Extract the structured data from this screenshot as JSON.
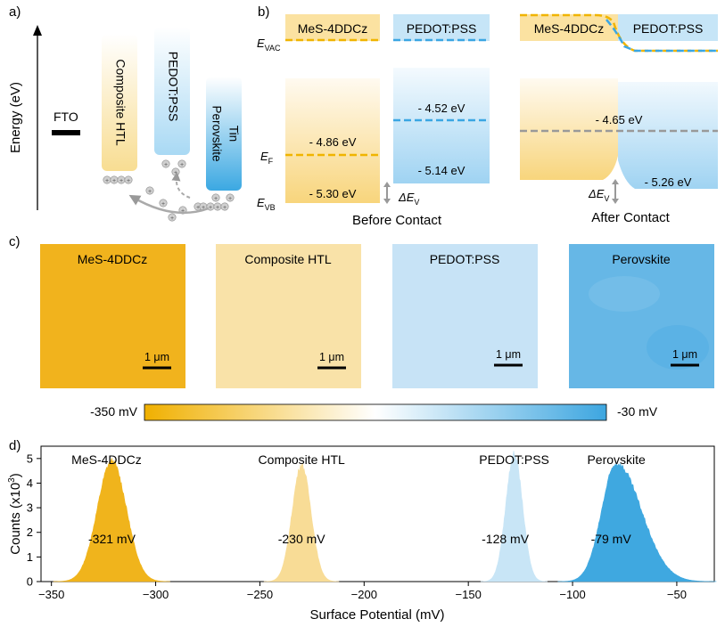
{
  "panels": {
    "a": {
      "label": "a)",
      "y_axis": "Energy (eV)",
      "fto": "FTO",
      "bars": [
        "Composite HTL",
        "PEDOT:PSS",
        "Tin",
        "Perovskite"
      ]
    },
    "b": {
      "label": "b)",
      "left_box": "MeS-4DDCz",
      "right_box": "PEDOT:PSS",
      "evac_main": "E",
      "evac_sub": "VAC",
      "ef_main": "E",
      "ef_sub": "F",
      "evb_main": "E",
      "evb_sub": "VB",
      "before": {
        "v1": "- 4.86 eV",
        "v2": "- 5.30 eV",
        "v3": "- 4.52 eV",
        "v4": "- 5.14 eV",
        "caption": "Before Contact"
      },
      "after": {
        "left_box": "MeS-4DDCz",
        "right_box": "PEDOT:PSS",
        "v1": "- 4.65 eV",
        "v2": "- 5.26 eV",
        "caption": "After Contact"
      },
      "delta_main": "ΔE",
      "delta_sub": "V"
    },
    "c": {
      "label": "c)",
      "maps": [
        {
          "title": "MeS-4DDCz",
          "scale": "1 μm",
          "color": "#f2b31f"
        },
        {
          "title": "Composite HTL",
          "scale": "1 μm",
          "color": "#f9e2a9"
        },
        {
          "title": "PEDOT:PSS",
          "scale": "1 μm",
          "color": "#c5e2f5"
        },
        {
          "title": "Perovskite",
          "scale": "1 μm",
          "color": "#62b6e6"
        }
      ],
      "colorbar_min": "-350 mV",
      "colorbar_max": "-30 mV"
    }
  },
  "chart_data": {
    "type": "area",
    "panel_label": "d)",
    "title": "",
    "xlabel": "Surface Potential (mV)",
    "ylabel": "Counts (x10",
    "ylabel_sup": "3",
    "ylabel_end": ")",
    "xlim": [
      -355,
      -32
    ],
    "ylim": [
      0,
      5.5
    ],
    "xticks": [
      -350,
      -300,
      -250,
      -200,
      -150,
      -100,
      -50
    ],
    "xtick_labels": [
      "−350",
      "−300",
      "−250",
      "−200",
      "−150",
      "−100",
      "−50"
    ],
    "yticks": [
      0,
      1,
      2,
      3,
      4,
      5
    ],
    "series": [
      {
        "name": "MeS-4DDCz",
        "peak_x": -321,
        "peak_y": 4.9,
        "sigma_left": 7,
        "sigma_right": 7,
        "annotation": "-321 mV",
        "color": "#f0b41c"
      },
      {
        "name": "Composite HTL",
        "peak_x": -230,
        "peak_y": 4.75,
        "sigma_left": 4.5,
        "sigma_right": 4.5,
        "annotation": "-230 mV",
        "color": "#f8dc96"
      },
      {
        "name": "PEDOT:PSS",
        "peak_x": -128,
        "peak_y": 5.2,
        "sigma_left": 4,
        "sigma_right": 4,
        "annotation": "-128 mV",
        "color": "#c8e5f6"
      },
      {
        "name": "Perovskite",
        "peak_x": -79,
        "peak_y": 4.8,
        "sigma_left": 7,
        "sigma_right": 12,
        "annotation": "-79 mV",
        "color": "#3fa8e0"
      }
    ]
  }
}
